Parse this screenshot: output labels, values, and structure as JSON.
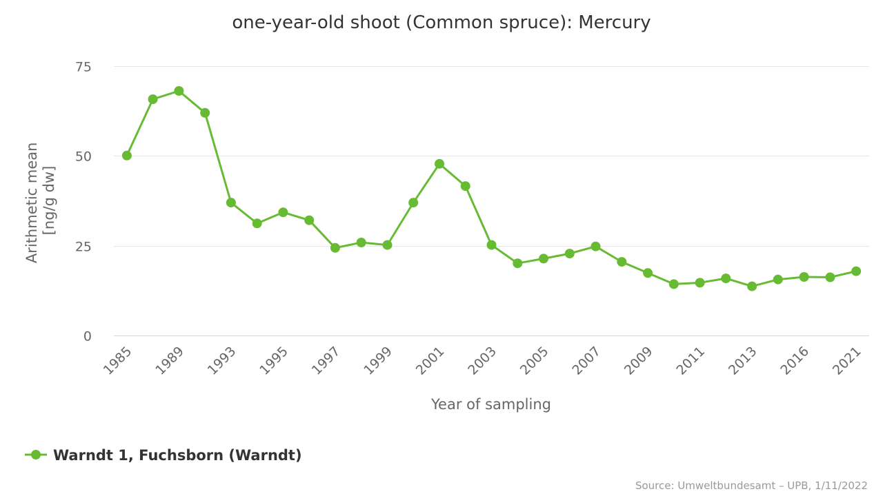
{
  "chart_data": {
    "type": "line",
    "title": "one-year-old shoot (Common spruce): Mercury",
    "xlabel": "Year of sampling",
    "ylabel_lines": [
      "Arithmetic mean",
      "[ng/g dw]"
    ],
    "ylim": [
      0,
      75
    ],
    "yticks": [
      0,
      25,
      50,
      75
    ],
    "grid": true,
    "legend_position": "bottom-left",
    "categories": [
      "1985",
      "1987",
      "1989",
      "1991",
      "1993",
      "1994",
      "1995",
      "1996",
      "1997",
      "1998",
      "1999",
      "2000",
      "2001",
      "2002",
      "2003",
      "2004",
      "2005",
      "2006",
      "2007",
      "2008",
      "2009",
      "2010",
      "2011",
      "2012",
      "2013",
      "2014",
      "2016",
      "2018",
      "2021"
    ],
    "x_tick_labels": [
      "1985",
      "1989",
      "1993",
      "1995",
      "1997",
      "1999",
      "2001",
      "2003",
      "2005",
      "2007",
      "2009",
      "2011",
      "2013",
      "2016",
      "2021"
    ],
    "series": [
      {
        "name": "Warndt 1, Fuchsborn (Warndt)",
        "color": "#66bb33",
        "values": [
          50.1,
          65.8,
          68.1,
          62.0,
          37.0,
          31.2,
          34.3,
          32.1,
          24.4,
          25.9,
          25.2,
          37.0,
          47.8,
          41.6,
          25.2,
          20.1,
          21.4,
          22.8,
          24.8,
          20.5,
          17.4,
          14.3,
          14.7,
          15.9,
          13.7,
          15.6,
          16.3,
          16.2,
          17.9
        ]
      }
    ]
  },
  "credits": "Source: Umweltbundesamt – UPB, 1/11/2022"
}
